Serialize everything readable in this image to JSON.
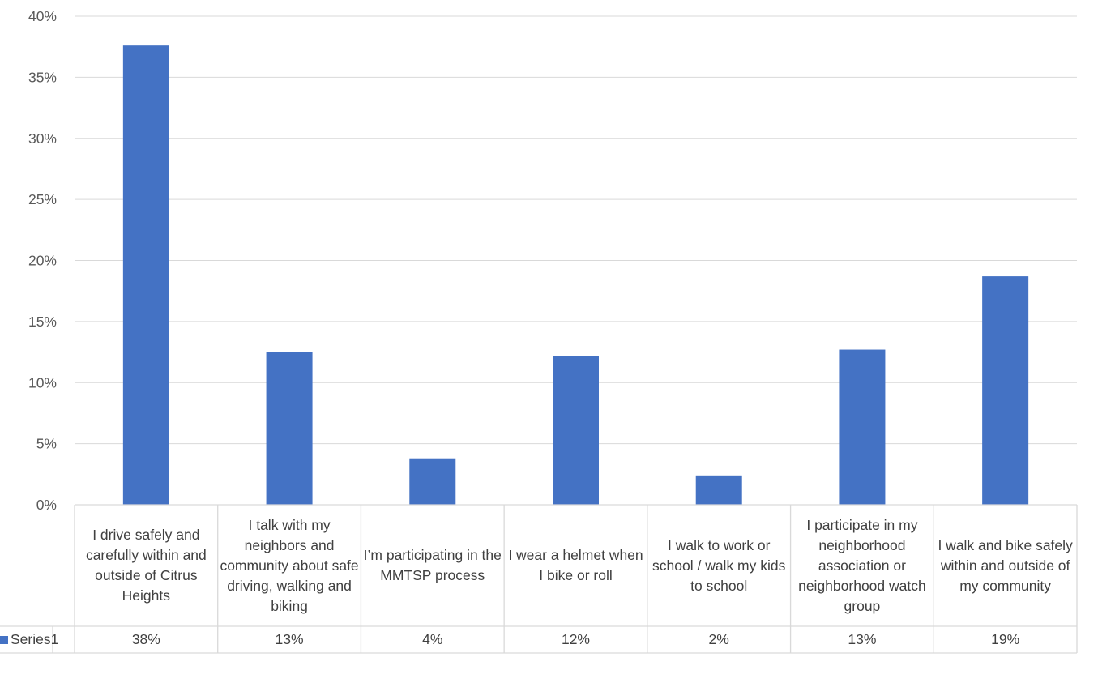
{
  "chart_data": {
    "type": "bar",
    "categories": [
      "I drive safely and carefully within and outside of Citrus Heights",
      "I talk with my neighbors and community about safe driving, walking and biking",
      "I’m participating in the MMTSP process",
      "I wear a helmet when I bike or roll",
      "I walk to work or school / walk my kids to school",
      "I participate in my neighborhood association or neighborhood watch group",
      "I walk and bike safely within and outside of my community"
    ],
    "series": [
      {
        "name": "Series1",
        "values": [
          37.6,
          12.5,
          3.8,
          12.2,
          2.4,
          12.7,
          18.7
        ],
        "labels": [
          "38%",
          "13%",
          "4%",
          "12%",
          "2%",
          "13%",
          "19%"
        ]
      }
    ],
    "ylim": [
      0,
      40
    ],
    "yticks": [
      0,
      5,
      10,
      15,
      20,
      25,
      30,
      35,
      40
    ],
    "ytick_labels": [
      "0%",
      "5%",
      "10%",
      "15%",
      "20%",
      "25%",
      "30%",
      "35%",
      "40%"
    ],
    "grid": true,
    "legend_placement": "bottom-left data table",
    "colors": {
      "bar": "#4472C4",
      "grid": "#D9D9D9",
      "text": "#404040"
    }
  }
}
